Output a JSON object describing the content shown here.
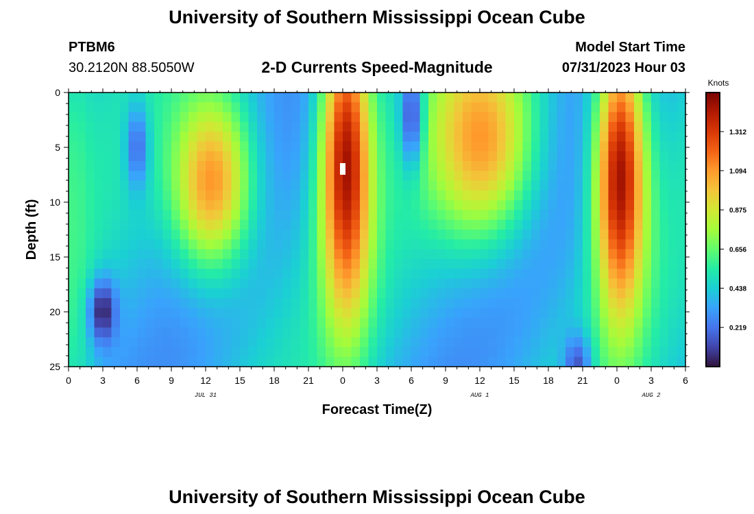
{
  "page": {
    "title": "University of Southern Mississippi Ocean Cube",
    "footer_title": "University of Southern Mississippi Ocean Cube",
    "station": "PTBM6",
    "coordinates": "30.2120N  88.5050W",
    "subtitle": "2-D Currents Speed-Magnitude",
    "model_start_label": "Model Start Time",
    "model_start_value": "07/31/2023 Hour 03"
  },
  "chart_data": {
    "type": "heatmap",
    "title": "2-D Currents Speed-Magnitude",
    "xlabel": "Forecast Time(Z)",
    "ylabel": "Depth (ft)",
    "x_range_hours": [
      0,
      54
    ],
    "y_range_ft": [
      0,
      25
    ],
    "x_ticks": [
      {
        "hour": 0,
        "label": "0"
      },
      {
        "hour": 3,
        "label": "3"
      },
      {
        "hour": 6,
        "label": "6"
      },
      {
        "hour": 9,
        "label": "9"
      },
      {
        "hour": 12,
        "label": "12"
      },
      {
        "hour": 15,
        "label": "15"
      },
      {
        "hour": 18,
        "label": "18"
      },
      {
        "hour": 21,
        "label": "21"
      },
      {
        "hour": 24,
        "label": "0"
      },
      {
        "hour": 27,
        "label": "3"
      },
      {
        "hour": 30,
        "label": "6"
      },
      {
        "hour": 33,
        "label": "9"
      },
      {
        "hour": 36,
        "label": "12"
      },
      {
        "hour": 39,
        "label": "15"
      },
      {
        "hour": 42,
        "label": "18"
      },
      {
        "hour": 45,
        "label": "21"
      },
      {
        "hour": 48,
        "label": "0"
      },
      {
        "hour": 51,
        "label": "3"
      },
      {
        "hour": 54,
        "label": "6"
      }
    ],
    "y_ticks": [
      {
        "depth": 0,
        "label": "0"
      },
      {
        "depth": 5,
        "label": "5"
      },
      {
        "depth": 10,
        "label": "10"
      },
      {
        "depth": 15,
        "label": "15"
      },
      {
        "depth": 20,
        "label": "20"
      },
      {
        "depth": 25,
        "label": "25"
      }
    ],
    "date_labels": [
      {
        "hour": 12,
        "label": "JUL 31"
      },
      {
        "hour": 36,
        "label": "AUG 1"
      },
      {
        "hour": 51,
        "label": "AUG 2"
      }
    ],
    "colorbar": {
      "units": "Knots",
      "min": 0,
      "max": 1.53,
      "ticks": [
        0.219,
        0.438,
        0.656,
        0.875,
        1.094,
        1.312
      ],
      "tick_labels": [
        "0.219",
        "0.438",
        "0.656",
        "0.875",
        "1.094",
        "1.312"
      ],
      "colors": [
        "#30123b",
        "#4145ab",
        "#4675ed",
        "#39a2fc",
        "#1bcfd4",
        "#24eca6",
        "#61fc6c",
        "#a4fc3b",
        "#d1e834",
        "#f3c63a",
        "#fe9b2d",
        "#f36315",
        "#d93806",
        "#b11901",
        "#7a0402"
      ]
    },
    "speed_features": [
      {
        "center_hour": 0.5,
        "center_depth_ft": 12,
        "width_h": 1.6,
        "depth_spread_ft": 16,
        "peak_knots": 0.6,
        "note": "high speeds near surface at start"
      },
      {
        "center_hour": 12.5,
        "center_depth_ft": 8,
        "width_h": 3.5,
        "depth_spread_ft": 8,
        "peak_knots": 1.1,
        "note": "orange maximum"
      },
      {
        "center_hour": 24.3,
        "center_depth_ft": 7,
        "width_h": 2.2,
        "depth_spread_ft": 14,
        "peak_knots": 1.45,
        "note": "dark red maximum"
      },
      {
        "center_hour": 36.0,
        "center_depth_ft": 4,
        "width_h": 4.5,
        "depth_spread_ft": 9,
        "peak_knots": 1.1,
        "note": "orange maximum"
      },
      {
        "center_hour": 48.3,
        "center_depth_ft": 8,
        "width_h": 2.2,
        "depth_spread_ft": 13,
        "peak_knots": 1.45,
        "note": "dark red maximum"
      },
      {
        "center_hour": 3.0,
        "center_depth_ft": 20,
        "width_h": 1.2,
        "depth_spread_ft": 3,
        "peak_knots": 0.03,
        "note": "minimum, dark blue"
      },
      {
        "center_hour": 6.0,
        "center_depth_ft": 5,
        "width_h": 1.0,
        "depth_spread_ft": 4,
        "peak_knots": 0.2,
        "note": "minimum, blue"
      },
      {
        "center_hour": 30.0,
        "center_depth_ft": 2,
        "width_h": 1.0,
        "depth_spread_ft": 5,
        "peak_knots": 0.15,
        "note": "minimum, dark blue"
      },
      {
        "center_hour": 44.5,
        "center_depth_ft": 25,
        "width_h": 1.2,
        "depth_spread_ft": 3,
        "peak_knots": 0.15,
        "note": "minimum, dark blue"
      }
    ]
  }
}
